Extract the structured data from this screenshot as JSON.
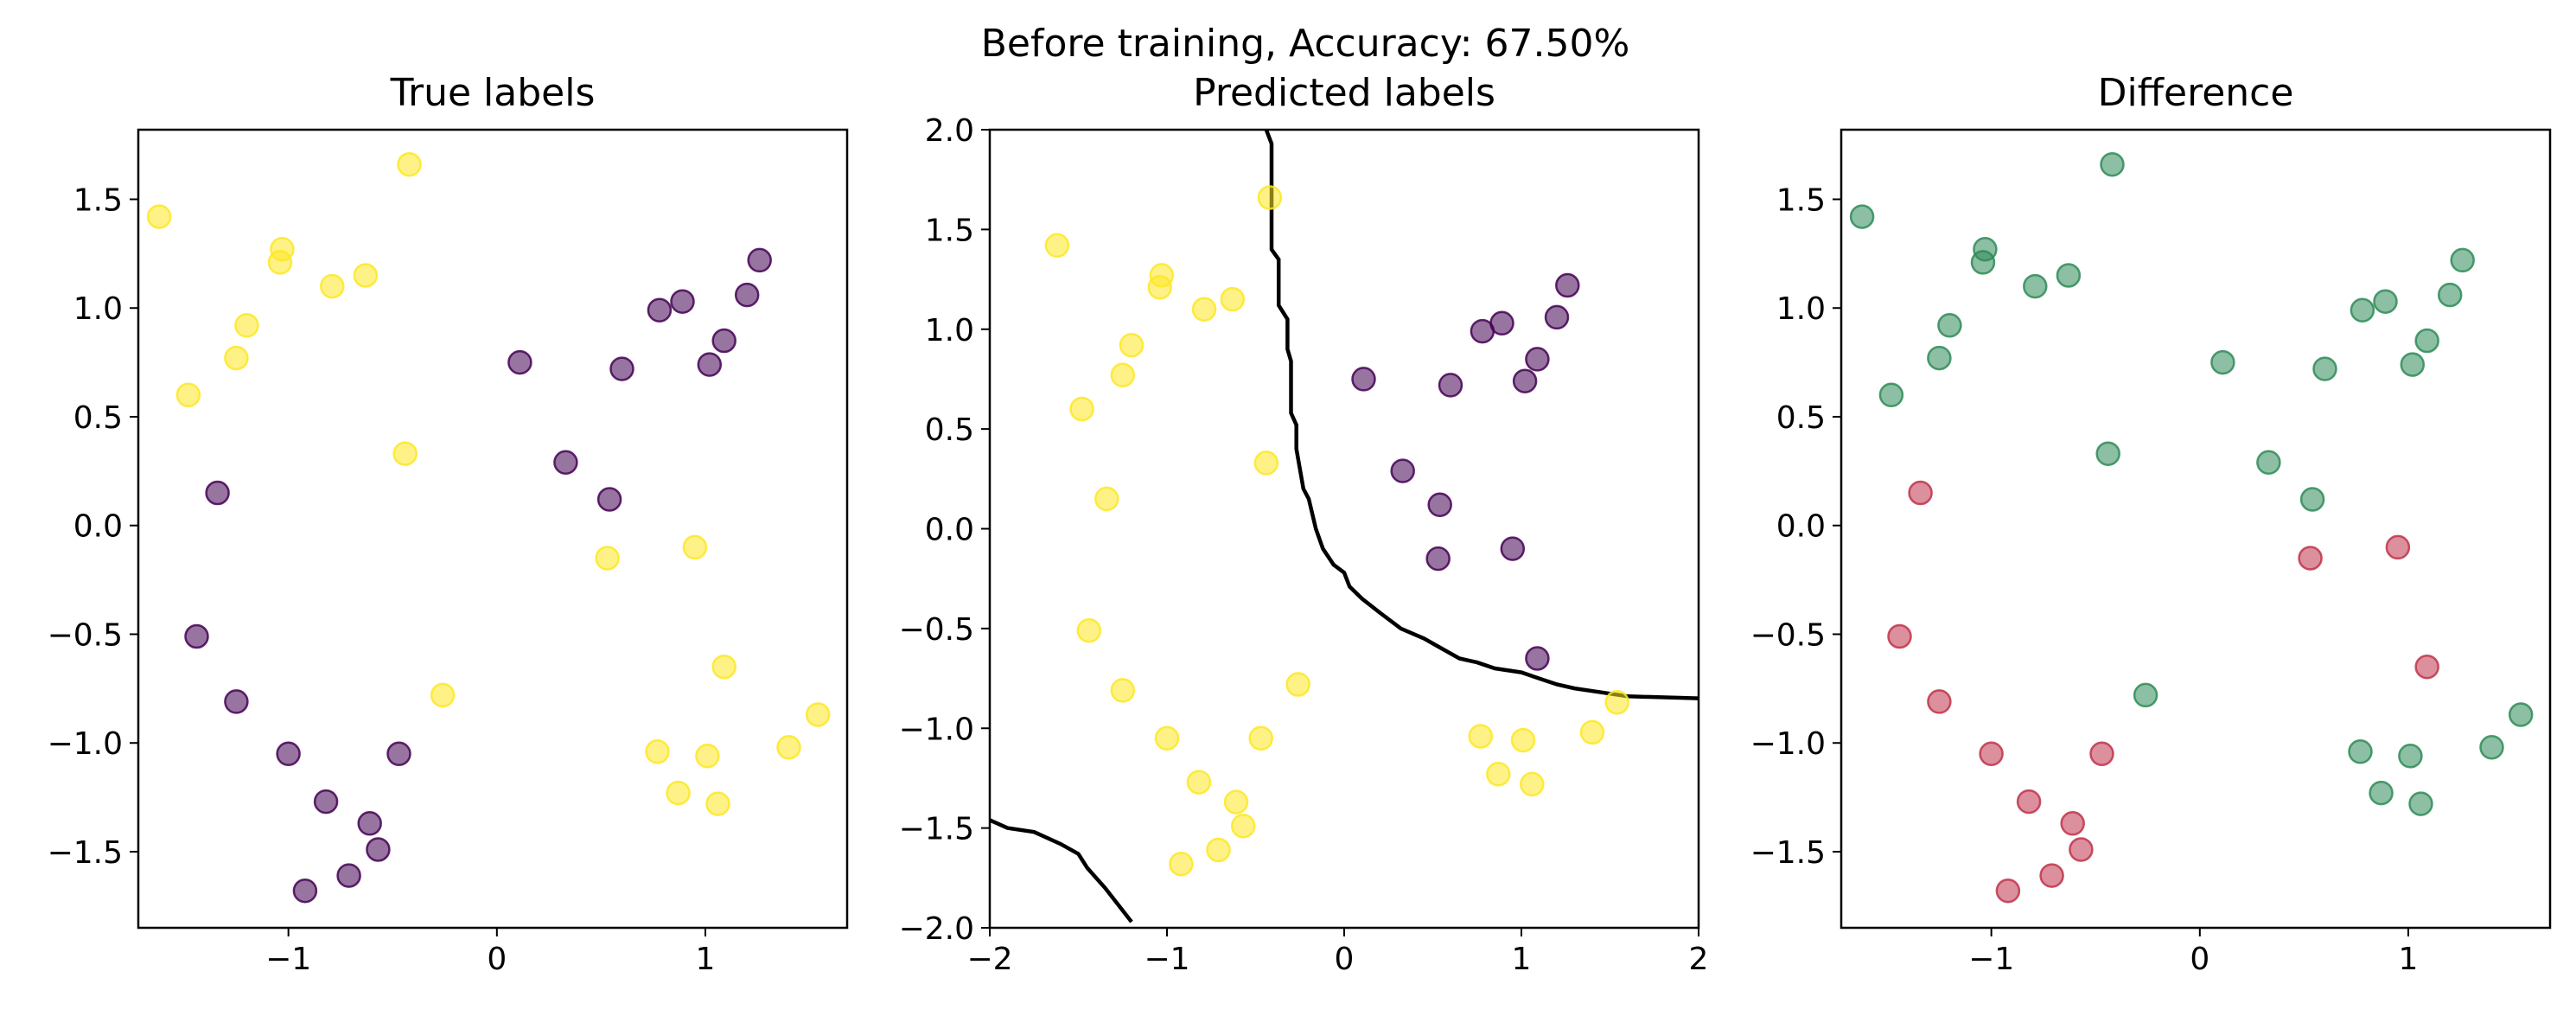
{
  "suptitle": "Before training, Accuracy: 67.50%",
  "colors": {
    "class0": "#440154",
    "class1": "#fde725",
    "correct": "#2e8b57",
    "incorrect": "#c0334a",
    "boundary": "#000000"
  },
  "chart_data": [
    {
      "type": "scatter",
      "title": "True labels",
      "xlabel": "",
      "ylabel": "",
      "xlim": [
        -1.72,
        1.68
      ],
      "ylim": [
        -1.85,
        1.82
      ],
      "xticks": [
        -1,
        0,
        1
      ],
      "xtick_labels": [
        "−1",
        "0",
        "1"
      ],
      "yticks": [
        -1.5,
        -1.0,
        -0.5,
        0.0,
        0.5,
        1.0,
        1.5
      ],
      "ytick_labels": [
        "−1.5",
        "−1.0",
        "−0.5",
        "0.0",
        "0.5",
        "1.0",
        "1.5"
      ],
      "color_by": "label"
    },
    {
      "type": "scatter",
      "title": "Predicted labels",
      "xlabel": "",
      "ylabel": "",
      "xlim": [
        -2,
        2
      ],
      "ylim": [
        -2,
        2
      ],
      "xticks": [
        -2,
        -1,
        0,
        1,
        2
      ],
      "xtick_labels": [
        "−2",
        "−1",
        "0",
        "1",
        "2"
      ],
      "yticks": [
        -2.0,
        -1.5,
        -1.0,
        -0.5,
        0.0,
        0.5,
        1.0,
        1.5,
        2.0
      ],
      "ytick_labels": [
        "−2.0",
        "−1.5",
        "−1.0",
        "−0.5",
        "0.0",
        "0.5",
        "1.0",
        "1.5",
        "2.0"
      ],
      "color_by": "prediction",
      "decision_boundary": [
        [
          [
            -0.44,
            2.0
          ],
          [
            -0.41,
            1.93
          ],
          [
            -0.41,
            1.4
          ],
          [
            -0.37,
            1.35
          ],
          [
            -0.37,
            1.12
          ],
          [
            -0.32,
            1.05
          ],
          [
            -0.32,
            0.9
          ],
          [
            -0.3,
            0.84
          ],
          [
            -0.3,
            0.58
          ],
          [
            -0.27,
            0.52
          ],
          [
            -0.27,
            0.4
          ],
          [
            -0.23,
            0.2
          ],
          [
            -0.2,
            0.15
          ],
          [
            -0.16,
            0.0
          ],
          [
            -0.12,
            -0.1
          ],
          [
            -0.06,
            -0.18
          ],
          [
            0.0,
            -0.22
          ],
          [
            0.03,
            -0.29
          ],
          [
            0.1,
            -0.35
          ],
          [
            0.2,
            -0.42
          ],
          [
            0.32,
            -0.5
          ],
          [
            0.45,
            -0.55
          ],
          [
            0.55,
            -0.6
          ],
          [
            0.65,
            -0.65
          ],
          [
            0.75,
            -0.67
          ],
          [
            0.85,
            -0.7
          ],
          [
            1.0,
            -0.72
          ],
          [
            1.1,
            -0.75
          ],
          [
            1.2,
            -0.78
          ],
          [
            1.3,
            -0.8
          ],
          [
            1.45,
            -0.82
          ],
          [
            1.6,
            -0.84
          ],
          [
            2.0,
            -0.85
          ]
        ],
        [
          [
            -2.0,
            -1.46
          ],
          [
            -1.9,
            -1.5
          ],
          [
            -1.75,
            -1.52
          ],
          [
            -1.6,
            -1.58
          ],
          [
            -1.5,
            -1.63
          ],
          [
            -1.45,
            -1.7
          ],
          [
            -1.35,
            -1.8
          ],
          [
            -1.2,
            -1.97
          ]
        ]
      ]
    },
    {
      "type": "scatter",
      "title": "Difference",
      "xlabel": "",
      "ylabel": "",
      "xlim": [
        -1.72,
        1.68
      ],
      "ylim": [
        -1.85,
        1.82
      ],
      "xticks": [
        -1,
        0,
        1
      ],
      "xtick_labels": [
        "−1",
        "0",
        "1"
      ],
      "yticks": [
        -1.5,
        -1.0,
        -0.5,
        0.0,
        0.5,
        1.0,
        1.5
      ],
      "ytick_labels": [
        "−1.5",
        "−1.0",
        "−0.5",
        "0.0",
        "0.5",
        "1.0",
        "1.5"
      ],
      "color_by": "correctness"
    }
  ],
  "points": [
    {
      "x": -1.62,
      "y": 1.42,
      "label": 1,
      "pred": 1
    },
    {
      "x": -1.48,
      "y": 0.6,
      "label": 1,
      "pred": 1
    },
    {
      "x": -1.03,
      "y": 1.27,
      "label": 1,
      "pred": 1
    },
    {
      "x": -1.04,
      "y": 1.21,
      "label": 1,
      "pred": 1
    },
    {
      "x": -1.2,
      "y": 0.92,
      "label": 1,
      "pred": 1
    },
    {
      "x": -1.25,
      "y": 0.77,
      "label": 1,
      "pred": 1
    },
    {
      "x": -0.79,
      "y": 1.1,
      "label": 1,
      "pred": 1
    },
    {
      "x": -0.63,
      "y": 1.15,
      "label": 1,
      "pred": 1
    },
    {
      "x": -0.42,
      "y": 1.66,
      "label": 1,
      "pred": 1
    },
    {
      "x": -0.44,
      "y": 0.33,
      "label": 1,
      "pred": 1
    },
    {
      "x": -0.26,
      "y": -0.78,
      "label": 1,
      "pred": 1
    },
    {
      "x": 0.53,
      "y": -0.15,
      "label": 1,
      "pred": 0
    },
    {
      "x": 0.95,
      "y": -0.1,
      "label": 1,
      "pred": 0
    },
    {
      "x": 1.09,
      "y": -0.65,
      "label": 1,
      "pred": 0
    },
    {
      "x": 0.77,
      "y": -1.04,
      "label": 1,
      "pred": 1
    },
    {
      "x": 1.01,
      "y": -1.06,
      "label": 1,
      "pred": 1
    },
    {
      "x": 0.87,
      "y": -1.23,
      "label": 1,
      "pred": 1
    },
    {
      "x": 1.06,
      "y": -1.28,
      "label": 1,
      "pred": 1
    },
    {
      "x": 1.4,
      "y": -1.02,
      "label": 1,
      "pred": 1
    },
    {
      "x": 1.54,
      "y": -0.87,
      "label": 1,
      "pred": 1
    },
    {
      "x": -1.34,
      "y": 0.15,
      "label": 0,
      "pred": 1
    },
    {
      "x": -1.44,
      "y": -0.51,
      "label": 0,
      "pred": 1
    },
    {
      "x": -1.25,
      "y": -0.81,
      "label": 0,
      "pred": 1
    },
    {
      "x": -1.0,
      "y": -1.05,
      "label": 0,
      "pred": 1
    },
    {
      "x": -0.82,
      "y": -1.27,
      "label": 0,
      "pred": 1
    },
    {
      "x": -0.92,
      "y": -1.68,
      "label": 0,
      "pred": 1
    },
    {
      "x": -0.71,
      "y": -1.61,
      "label": 0,
      "pred": 1
    },
    {
      "x": -0.61,
      "y": -1.37,
      "label": 0,
      "pred": 1
    },
    {
      "x": -0.57,
      "y": -1.49,
      "label": 0,
      "pred": 1
    },
    {
      "x": -0.47,
      "y": -1.05,
      "label": 0,
      "pred": 1
    },
    {
      "x": 0.11,
      "y": 0.75,
      "label": 0,
      "pred": 0
    },
    {
      "x": 0.33,
      "y": 0.29,
      "label": 0,
      "pred": 0
    },
    {
      "x": 0.54,
      "y": 0.12,
      "label": 0,
      "pred": 0
    },
    {
      "x": 0.6,
      "y": 0.72,
      "label": 0,
      "pred": 0
    },
    {
      "x": 0.78,
      "y": 0.99,
      "label": 0,
      "pred": 0
    },
    {
      "x": 0.89,
      "y": 1.03,
      "label": 0,
      "pred": 0
    },
    {
      "x": 1.02,
      "y": 0.74,
      "label": 0,
      "pred": 0
    },
    {
      "x": 1.09,
      "y": 0.85,
      "label": 0,
      "pred": 0
    },
    {
      "x": 1.2,
      "y": 1.06,
      "label": 0,
      "pred": 0
    },
    {
      "x": 1.26,
      "y": 1.22,
      "label": 0,
      "pred": 0
    }
  ]
}
